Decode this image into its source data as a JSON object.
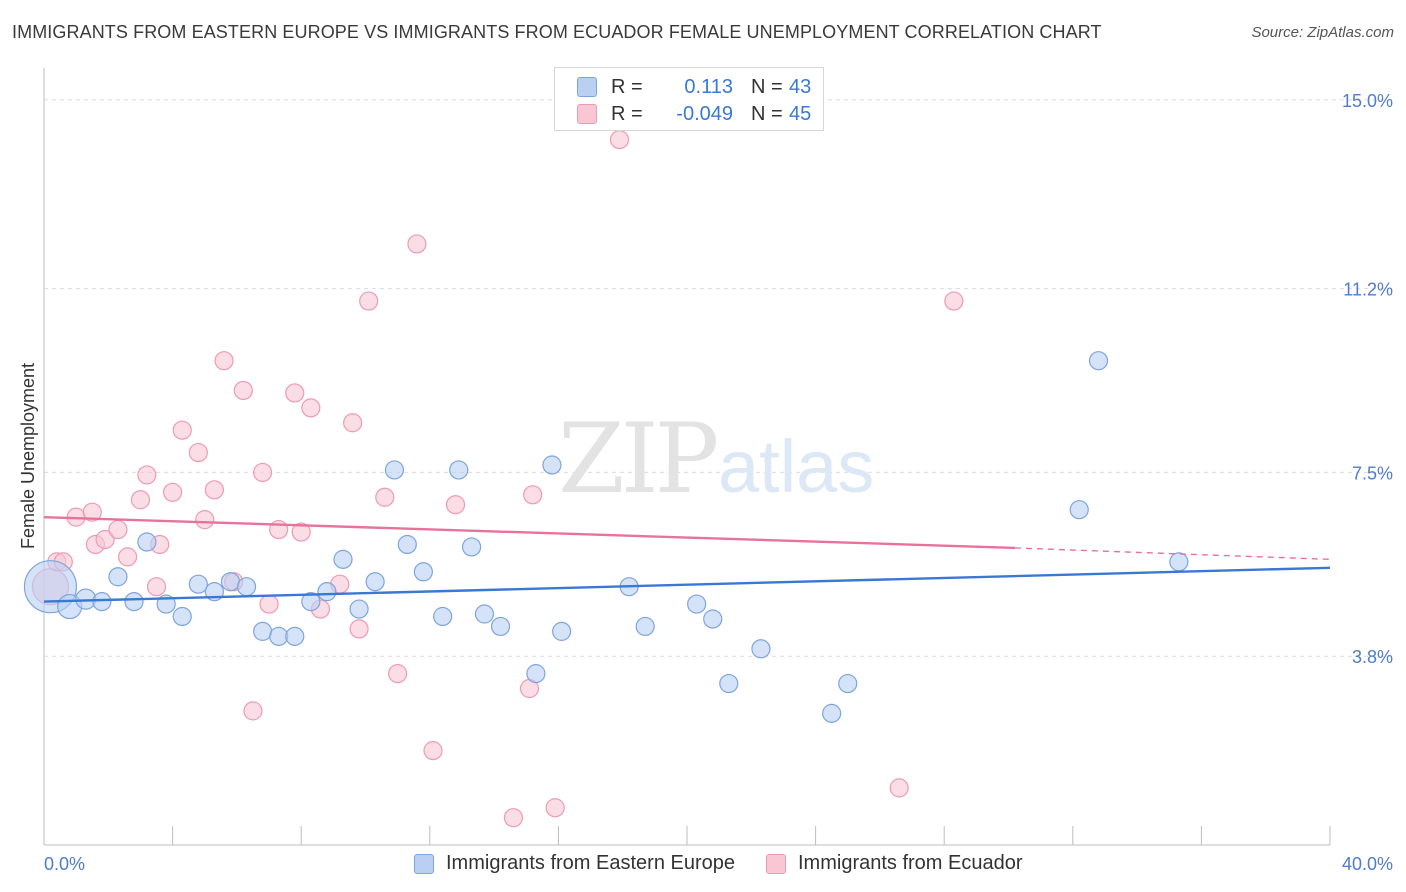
{
  "title": "IMMIGRANTS FROM EASTERN EUROPE VS IMMIGRANTS FROM ECUADOR FEMALE UNEMPLOYMENT CORRELATION CHART",
  "source": "Source: ZipAtlas.com",
  "watermark": {
    "zip": "ZIP",
    "atlas": "atlas"
  },
  "colors": {
    "blue": "#3a78d6",
    "blue_fill": "#b9d0f3",
    "pink": "#e8739a",
    "pink_fill": "#f9c6d4",
    "tick": "#4f7ccc"
  },
  "legend": {
    "rows": [
      {
        "r_label": "R =",
        "r_value": "0.113",
        "n_label": "N =",
        "n_value": "43"
      },
      {
        "r_label": "R =",
        "r_value": "-0.049",
        "n_label": "N =",
        "n_value": "45"
      }
    ]
  },
  "bottom_legend": {
    "series1": "Immigrants from Eastern Europe",
    "series2": "Immigrants from Ecuador"
  },
  "chart_data": {
    "type": "scatter",
    "xlabel": "",
    "ylabel": "Female Unemployment",
    "xlim": [
      0,
      40
    ],
    "ylim": [
      0,
      15.4
    ],
    "x_tick_labels": [
      "0.0%",
      "40.0%"
    ],
    "y_ticks": [
      {
        "value": 15.0,
        "label": "15.0%"
      },
      {
        "value": 11.2,
        "label": "11.2%"
      },
      {
        "value": 7.5,
        "label": "7.5%"
      },
      {
        "value": 3.8,
        "label": "3.8%"
      }
    ],
    "series": [
      {
        "name": "Immigrants from Eastern Europe",
        "color": "blue",
        "trend": {
          "x0": 0,
          "y0": 4.9,
          "x1": 40,
          "y1": 5.58
        },
        "points": [
          [
            0.2,
            5.2,
            26
          ],
          [
            0.8,
            4.8,
            12
          ],
          [
            1.3,
            4.95,
            10
          ],
          [
            1.8,
            4.9,
            9
          ],
          [
            2.3,
            5.4,
            9
          ],
          [
            2.8,
            4.9,
            9
          ],
          [
            3.2,
            6.1,
            9
          ],
          [
            3.8,
            4.85,
            9
          ],
          [
            4.3,
            4.6,
            9
          ],
          [
            4.8,
            5.25,
            9
          ],
          [
            5.3,
            5.1,
            9
          ],
          [
            5.8,
            5.3,
            9
          ],
          [
            6.3,
            5.2,
            9
          ],
          [
            6.8,
            4.3,
            9
          ],
          [
            7.3,
            4.2,
            9
          ],
          [
            7.8,
            4.2,
            9
          ],
          [
            8.3,
            4.9,
            9
          ],
          [
            8.8,
            5.1,
            9
          ],
          [
            9.3,
            5.75,
            9
          ],
          [
            9.8,
            4.75,
            9
          ],
          [
            10.3,
            5.3,
            9
          ],
          [
            10.9,
            7.55,
            9
          ],
          [
            11.3,
            6.05,
            9
          ],
          [
            11.8,
            5.5,
            9
          ],
          [
            12.4,
            4.6,
            9
          ],
          [
            12.9,
            7.55,
            9
          ],
          [
            13.3,
            6.0,
            9
          ],
          [
            13.7,
            4.65,
            9
          ],
          [
            14.2,
            4.4,
            9
          ],
          [
            15.3,
            3.45,
            9
          ],
          [
            15.8,
            7.65,
            9
          ],
          [
            16.1,
            4.3,
            9
          ],
          [
            18.2,
            5.2,
            9
          ],
          [
            18.7,
            4.4,
            9
          ],
          [
            20.3,
            4.85,
            9
          ],
          [
            20.8,
            4.55,
            9
          ],
          [
            21.3,
            3.25,
            9
          ],
          [
            22.3,
            3.95,
            9
          ],
          [
            24.5,
            2.65,
            9
          ],
          [
            25.0,
            3.25,
            9
          ],
          [
            32.2,
            6.75,
            9
          ],
          [
            32.8,
            9.75,
            9
          ],
          [
            35.3,
            5.7,
            9
          ]
        ]
      },
      {
        "name": "Immigrants from Ecuador",
        "color": "pink",
        "trend": {
          "x0": 0,
          "y0": 6.6,
          "x1": 30.2,
          "y1": 5.98,
          "dash_x1": 40,
          "dash_y1": 5.75
        },
        "points": [
          [
            0.2,
            5.2,
            18
          ],
          [
            0.4,
            5.7,
            9
          ],
          [
            0.6,
            5.7,
            9
          ],
          [
            1.0,
            6.6,
            9
          ],
          [
            1.5,
            6.7,
            9
          ],
          [
            1.6,
            6.05,
            9
          ],
          [
            1.9,
            6.15,
            9
          ],
          [
            2.3,
            6.35,
            9
          ],
          [
            2.6,
            5.8,
            9
          ],
          [
            3.0,
            6.95,
            9
          ],
          [
            3.2,
            7.45,
            9
          ],
          [
            3.5,
            5.2,
            9
          ],
          [
            3.6,
            6.05,
            9
          ],
          [
            4.0,
            7.1,
            9
          ],
          [
            4.3,
            8.35,
            9
          ],
          [
            4.8,
            7.9,
            9
          ],
          [
            5.0,
            6.55,
            9
          ],
          [
            5.3,
            7.15,
            9
          ],
          [
            5.6,
            9.75,
            9
          ],
          [
            5.9,
            5.3,
            9
          ],
          [
            6.2,
            9.15,
            9
          ],
          [
            6.5,
            2.7,
            9
          ],
          [
            6.8,
            7.5,
            9
          ],
          [
            7.0,
            4.85,
            9
          ],
          [
            7.3,
            6.35,
            9
          ],
          [
            7.8,
            9.1,
            9
          ],
          [
            8.0,
            6.3,
            9
          ],
          [
            8.3,
            8.8,
            9
          ],
          [
            8.6,
            4.75,
            9
          ],
          [
            9.2,
            5.25,
            9
          ],
          [
            9.6,
            8.5,
            9
          ],
          [
            9.8,
            4.35,
            9
          ],
          [
            10.1,
            10.95,
            9
          ],
          [
            10.6,
            7.0,
            9
          ],
          [
            11.0,
            3.45,
            9
          ],
          [
            11.6,
            12.1,
            9
          ],
          [
            12.1,
            1.9,
            9
          ],
          [
            12.8,
            6.85,
            9
          ],
          [
            14.6,
            0.55,
            9
          ],
          [
            15.1,
            3.15,
            9
          ],
          [
            15.2,
            7.05,
            9
          ],
          [
            15.9,
            0.75,
            9
          ],
          [
            17.9,
            14.2,
            9
          ],
          [
            26.6,
            1.15,
            9
          ],
          [
            28.3,
            10.95,
            9
          ]
        ]
      }
    ]
  }
}
